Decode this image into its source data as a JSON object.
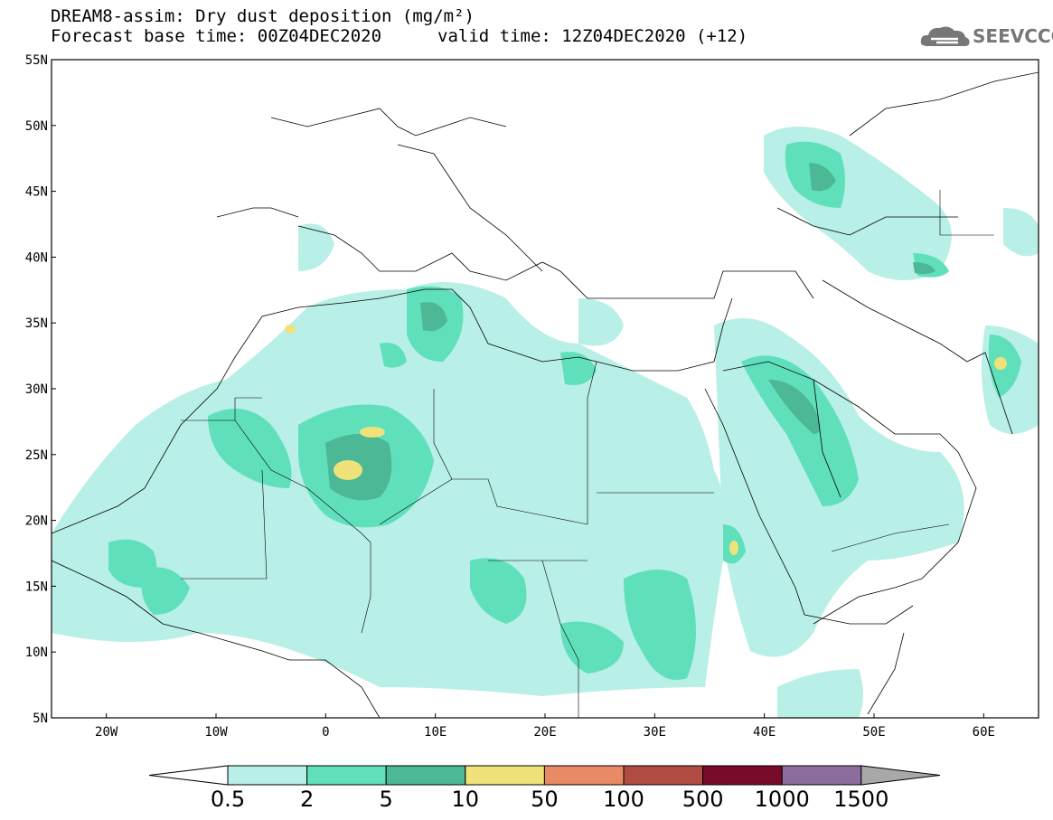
{
  "title": {
    "line1": "DREAM8-assim: Dry dust deposition (mg/m²)",
    "line2": "Forecast base time: 00Z04DEC2020",
    "line3": "valid time: 12Z04DEC2020 (+12)"
  },
  "logo": {
    "text": "SEEVCCC",
    "icon": "cloud-logo-icon",
    "color": "#7a7a7a"
  },
  "axes": {
    "lat_labels": [
      "55N",
      "50N",
      "45N",
      "40N",
      "35N",
      "30N",
      "25N",
      "20N",
      "15N",
      "10N",
      "5N"
    ],
    "lon_labels": [
      "20W",
      "10W",
      "0",
      "10E",
      "20E",
      "30E",
      "40E",
      "50E",
      "60E"
    ],
    "lat_range": [
      5,
      55
    ],
    "lon_range": [
      -25,
      65
    ]
  },
  "colorbar": {
    "labels": [
      "0.5",
      "2",
      "5",
      "10",
      "50",
      "100",
      "500",
      "1000",
      "1500"
    ],
    "colors": [
      "#ffffff",
      "#b8efe6",
      "#5fe0bb",
      "#4cb896",
      "#f0e27a",
      "#e88a63",
      "#b04c42",
      "#7a0a2a",
      "#8e6d9e",
      "#a8a8a8"
    ]
  }
}
